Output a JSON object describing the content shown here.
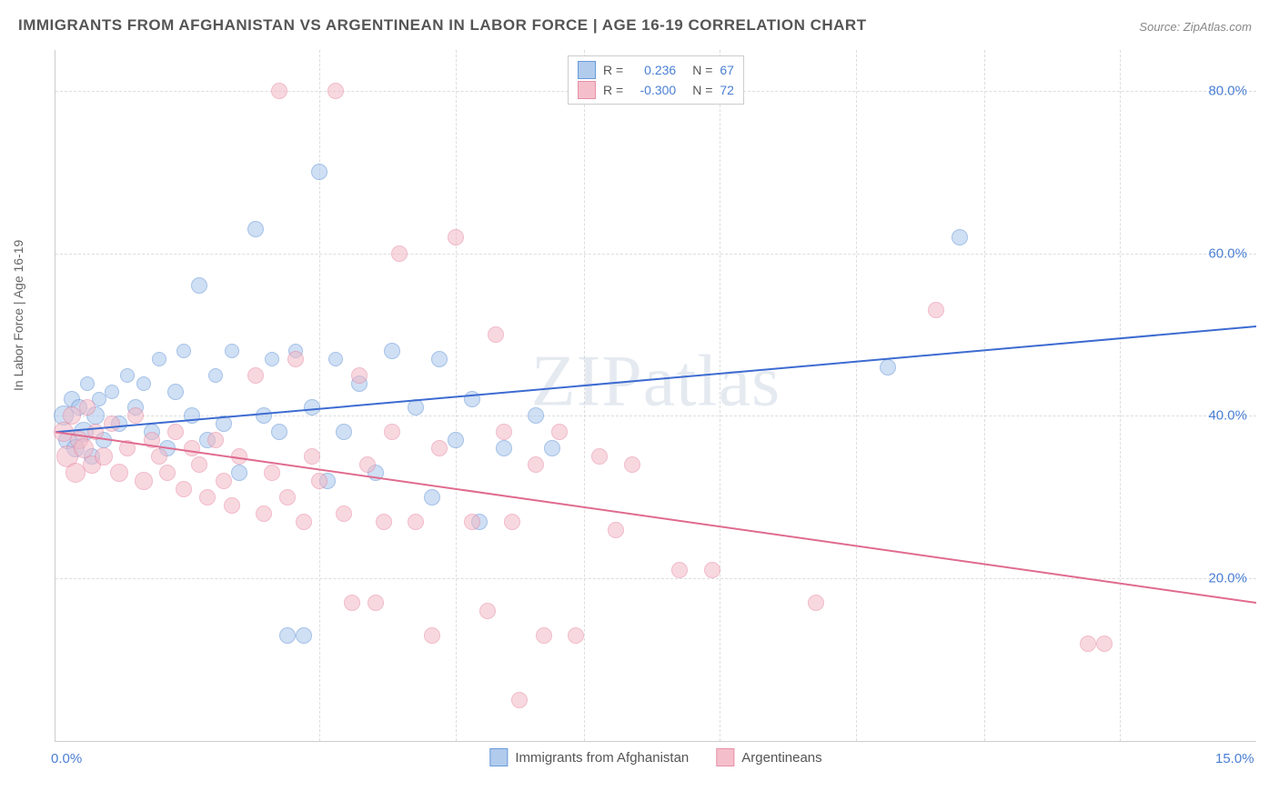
{
  "title": "IMMIGRANTS FROM AFGHANISTAN VS ARGENTINEAN IN LABOR FORCE | AGE 16-19 CORRELATION CHART",
  "source_label": "Source:",
  "source_value": "ZipAtlas.com",
  "y_axis_label": "In Labor Force | Age 16-19",
  "watermark": "ZIPatlas",
  "chart": {
    "type": "scatter",
    "xlim": [
      0,
      15
    ],
    "ylim": [
      0,
      85
    ],
    "x_ticks": [
      0,
      15
    ],
    "x_tick_labels": [
      "0.0%",
      "15.0%"
    ],
    "x_minor_ticks": [
      3.3,
      5.0,
      6.6,
      8.3,
      10.0,
      11.6,
      13.3
    ],
    "y_ticks": [
      20,
      40,
      60,
      80
    ],
    "y_tick_labels": [
      "20.0%",
      "40.0%",
      "60.0%",
      "80.0%"
    ],
    "background_color": "#ffffff",
    "grid_color": "#dddddd",
    "axis_color": "#cccccc",
    "tick_label_color": "#4a7fd4",
    "tick_label_fontsize": 15,
    "title_color": "#555555",
    "title_fontsize": 17,
    "series": [
      {
        "name": "Immigrants from Afghanistan",
        "fill_color": "#a9c6ec",
        "stroke_color": "#5a8fd6",
        "fill_opacity": 0.55,
        "marker_radius": 8,
        "legend_stats": {
          "R": "0.236",
          "N": "67"
        },
        "trend": {
          "x1": 0,
          "y1": 38,
          "x2": 15,
          "y2": 51,
          "stroke": "#3d6bd1",
          "width": 2
        },
        "points": [
          {
            "x": 0.1,
            "y": 40,
            "r": 10
          },
          {
            "x": 0.15,
            "y": 37,
            "r": 9
          },
          {
            "x": 0.2,
            "y": 42,
            "r": 8
          },
          {
            "x": 0.25,
            "y": 36,
            "r": 9
          },
          {
            "x": 0.3,
            "y": 41,
            "r": 8
          },
          {
            "x": 0.35,
            "y": 38,
            "r": 10
          },
          {
            "x": 0.4,
            "y": 44,
            "r": 7
          },
          {
            "x": 0.45,
            "y": 35,
            "r": 8
          },
          {
            "x": 0.5,
            "y": 40,
            "r": 9
          },
          {
            "x": 0.55,
            "y": 42,
            "r": 7
          },
          {
            "x": 0.6,
            "y": 37,
            "r": 8
          },
          {
            "x": 0.7,
            "y": 43,
            "r": 7
          },
          {
            "x": 0.8,
            "y": 39,
            "r": 8
          },
          {
            "x": 0.9,
            "y": 45,
            "r": 7
          },
          {
            "x": 1.0,
            "y": 41,
            "r": 8
          },
          {
            "x": 1.1,
            "y": 44,
            "r": 7
          },
          {
            "x": 1.2,
            "y": 38,
            "r": 8
          },
          {
            "x": 1.3,
            "y": 47,
            "r": 7
          },
          {
            "x": 1.4,
            "y": 36,
            "r": 8
          },
          {
            "x": 1.5,
            "y": 43,
            "r": 8
          },
          {
            "x": 1.6,
            "y": 48,
            "r": 7
          },
          {
            "x": 1.7,
            "y": 40,
            "r": 8
          },
          {
            "x": 1.8,
            "y": 56,
            "r": 8
          },
          {
            "x": 1.9,
            "y": 37,
            "r": 8
          },
          {
            "x": 2.0,
            "y": 45,
            "r": 7
          },
          {
            "x": 2.1,
            "y": 39,
            "r": 8
          },
          {
            "x": 2.2,
            "y": 48,
            "r": 7
          },
          {
            "x": 2.3,
            "y": 33,
            "r": 8
          },
          {
            "x": 2.5,
            "y": 63,
            "r": 8
          },
          {
            "x": 2.6,
            "y": 40,
            "r": 8
          },
          {
            "x": 2.7,
            "y": 47,
            "r": 7
          },
          {
            "x": 2.8,
            "y": 38,
            "r": 8
          },
          {
            "x": 2.9,
            "y": 13,
            "r": 8
          },
          {
            "x": 3.0,
            "y": 48,
            "r": 7
          },
          {
            "x": 3.1,
            "y": 13,
            "r": 8
          },
          {
            "x": 3.2,
            "y": 41,
            "r": 8
          },
          {
            "x": 3.3,
            "y": 70,
            "r": 8
          },
          {
            "x": 3.4,
            "y": 32,
            "r": 8
          },
          {
            "x": 3.5,
            "y": 47,
            "r": 7
          },
          {
            "x": 3.6,
            "y": 38,
            "r": 8
          },
          {
            "x": 3.8,
            "y": 44,
            "r": 8
          },
          {
            "x": 4.0,
            "y": 33,
            "r": 8
          },
          {
            "x": 4.2,
            "y": 48,
            "r": 8
          },
          {
            "x": 4.5,
            "y": 41,
            "r": 8
          },
          {
            "x": 4.7,
            "y": 30,
            "r": 8
          },
          {
            "x": 4.8,
            "y": 47,
            "r": 8
          },
          {
            "x": 5.0,
            "y": 37,
            "r": 8
          },
          {
            "x": 5.2,
            "y": 42,
            "r": 8
          },
          {
            "x": 5.3,
            "y": 27,
            "r": 8
          },
          {
            "x": 5.6,
            "y": 36,
            "r": 8
          },
          {
            "x": 6.0,
            "y": 40,
            "r": 8
          },
          {
            "x": 6.2,
            "y": 36,
            "r": 8
          },
          {
            "x": 10.4,
            "y": 46,
            "r": 8
          },
          {
            "x": 11.3,
            "y": 62,
            "r": 8
          }
        ]
      },
      {
        "name": "Argentineans",
        "fill_color": "#f3b9c6",
        "stroke_color": "#e585a0",
        "fill_opacity": 0.55,
        "marker_radius": 8,
        "legend_stats": {
          "R": "-0.300",
          "N": "72"
        },
        "trend": {
          "x1": 0,
          "y1": 38,
          "x2": 15,
          "y2": 17,
          "stroke": "#e06b8f",
          "width": 2
        },
        "points": [
          {
            "x": 0.1,
            "y": 38,
            "r": 10
          },
          {
            "x": 0.15,
            "y": 35,
            "r": 11
          },
          {
            "x": 0.2,
            "y": 40,
            "r": 9
          },
          {
            "x": 0.25,
            "y": 33,
            "r": 10
          },
          {
            "x": 0.3,
            "y": 37,
            "r": 9
          },
          {
            "x": 0.35,
            "y": 36,
            "r": 10
          },
          {
            "x": 0.4,
            "y": 41,
            "r": 8
          },
          {
            "x": 0.45,
            "y": 34,
            "r": 9
          },
          {
            "x": 0.5,
            "y": 38,
            "r": 8
          },
          {
            "x": 0.6,
            "y": 35,
            "r": 9
          },
          {
            "x": 0.7,
            "y": 39,
            "r": 8
          },
          {
            "x": 0.8,
            "y": 33,
            "r": 9
          },
          {
            "x": 0.9,
            "y": 36,
            "r": 8
          },
          {
            "x": 1.0,
            "y": 40,
            "r": 8
          },
          {
            "x": 1.1,
            "y": 32,
            "r": 9
          },
          {
            "x": 1.2,
            "y": 37,
            "r": 8
          },
          {
            "x": 1.3,
            "y": 35,
            "r": 8
          },
          {
            "x": 1.4,
            "y": 33,
            "r": 8
          },
          {
            "x": 1.5,
            "y": 38,
            "r": 8
          },
          {
            "x": 1.6,
            "y": 31,
            "r": 8
          },
          {
            "x": 1.7,
            "y": 36,
            "r": 8
          },
          {
            "x": 1.8,
            "y": 34,
            "r": 8
          },
          {
            "x": 1.9,
            "y": 30,
            "r": 8
          },
          {
            "x": 2.0,
            "y": 37,
            "r": 8
          },
          {
            "x": 2.1,
            "y": 32,
            "r": 8
          },
          {
            "x": 2.2,
            "y": 29,
            "r": 8
          },
          {
            "x": 2.3,
            "y": 35,
            "r": 8
          },
          {
            "x": 2.5,
            "y": 45,
            "r": 8
          },
          {
            "x": 2.6,
            "y": 28,
            "r": 8
          },
          {
            "x": 2.7,
            "y": 33,
            "r": 8
          },
          {
            "x": 2.8,
            "y": 80,
            "r": 8
          },
          {
            "x": 2.9,
            "y": 30,
            "r": 8
          },
          {
            "x": 3.0,
            "y": 47,
            "r": 8
          },
          {
            "x": 3.1,
            "y": 27,
            "r": 8
          },
          {
            "x": 3.2,
            "y": 35,
            "r": 8
          },
          {
            "x": 3.3,
            "y": 32,
            "r": 8
          },
          {
            "x": 3.5,
            "y": 80,
            "r": 8
          },
          {
            "x": 3.6,
            "y": 28,
            "r": 8
          },
          {
            "x": 3.7,
            "y": 17,
            "r": 8
          },
          {
            "x": 3.8,
            "y": 45,
            "r": 8
          },
          {
            "x": 3.9,
            "y": 34,
            "r": 8
          },
          {
            "x": 4.0,
            "y": 17,
            "r": 8
          },
          {
            "x": 4.1,
            "y": 27,
            "r": 8
          },
          {
            "x": 4.2,
            "y": 38,
            "r": 8
          },
          {
            "x": 4.3,
            "y": 60,
            "r": 8
          },
          {
            "x": 4.5,
            "y": 27,
            "r": 8
          },
          {
            "x": 4.7,
            "y": 13,
            "r": 8
          },
          {
            "x": 4.8,
            "y": 36,
            "r": 8
          },
          {
            "x": 5.0,
            "y": 62,
            "r": 8
          },
          {
            "x": 5.2,
            "y": 27,
            "r": 8
          },
          {
            "x": 5.4,
            "y": 16,
            "r": 8
          },
          {
            "x": 5.5,
            "y": 50,
            "r": 8
          },
          {
            "x": 5.6,
            "y": 38,
            "r": 8
          },
          {
            "x": 5.7,
            "y": 27,
            "r": 8
          },
          {
            "x": 5.8,
            "y": 5,
            "r": 8
          },
          {
            "x": 6.0,
            "y": 34,
            "r": 8
          },
          {
            "x": 6.1,
            "y": 13,
            "r": 8
          },
          {
            "x": 6.3,
            "y": 38,
            "r": 8
          },
          {
            "x": 6.5,
            "y": 13,
            "r": 8
          },
          {
            "x": 6.8,
            "y": 35,
            "r": 8
          },
          {
            "x": 7.0,
            "y": 26,
            "r": 8
          },
          {
            "x": 7.2,
            "y": 34,
            "r": 8
          },
          {
            "x": 7.8,
            "y": 21,
            "r": 8
          },
          {
            "x": 8.2,
            "y": 21,
            "r": 8
          },
          {
            "x": 9.5,
            "y": 17,
            "r": 8
          },
          {
            "x": 11.0,
            "y": 53,
            "r": 8
          },
          {
            "x": 12.9,
            "y": 12,
            "r": 8
          },
          {
            "x": 13.1,
            "y": 12,
            "r": 8
          }
        ]
      }
    ]
  },
  "legend_top": {
    "r_label": "R =",
    "n_label": "N ="
  },
  "legend_bottom": {
    "s1": "Immigrants from Afghanistan",
    "s2": "Argentineans"
  }
}
